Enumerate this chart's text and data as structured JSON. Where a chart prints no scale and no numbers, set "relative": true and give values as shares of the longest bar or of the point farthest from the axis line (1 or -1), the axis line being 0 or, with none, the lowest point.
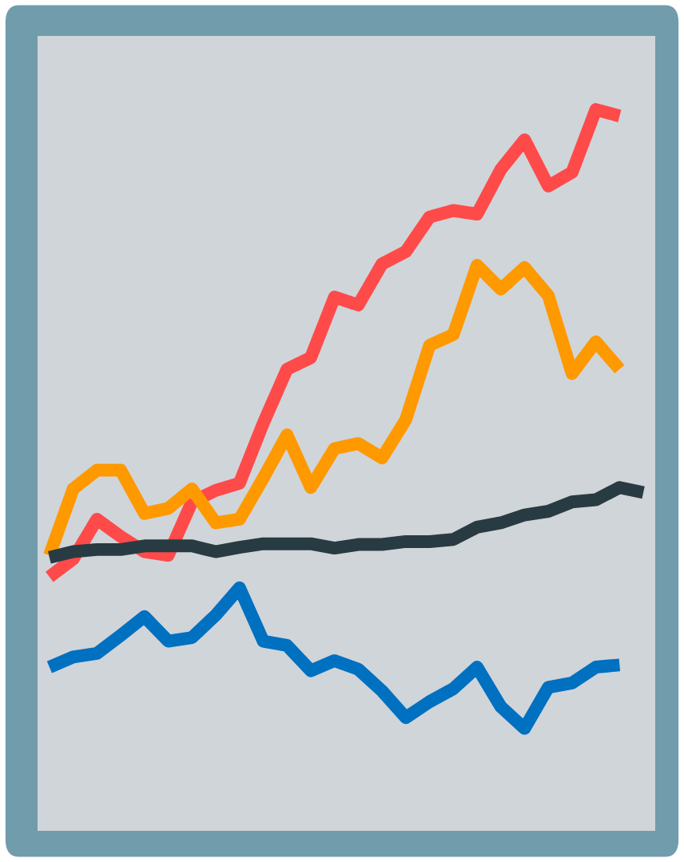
{
  "chart_data": {
    "type": "line",
    "relative": true,
    "grid": false,
    "legend": false,
    "marker": "none",
    "line_style": "solid",
    "categories": [
      null,
      null,
      null,
      null,
      null,
      null,
      null,
      null,
      null,
      null,
      null,
      null,
      null,
      null,
      null,
      null,
      null,
      null,
      null,
      null,
      null,
      null,
      null,
      null,
      null,
      null
    ],
    "series": [
      {
        "color": "#ff4a4a",
        "values": [
          0.352,
          0.377,
          0.432,
          0.408,
          0.387,
          0.382,
          0.456,
          0.472,
          0.482,
          0.565,
          0.64,
          0.656,
          0.74,
          0.729,
          0.786,
          0.803,
          0.851,
          0.86,
          0.855,
          0.917,
          0.958,
          0.894,
          0.913,
          1,
          0.991,
          null
        ]
      },
      {
        "color": "#ff9900",
        "values": [
          0.382,
          0.474,
          0.5,
          0.5,
          0.44,
          0.447,
          0.474,
          0.427,
          0.432,
          0.489,
          0.549,
          0.476,
          0.53,
          0.537,
          0.517,
          0.57,
          0.673,
          0.688,
          0.784,
          0.751,
          0.781,
          0.742,
          0.634,
          0.678,
          0.64,
          null
        ]
      },
      {
        "color": "#293b42",
        "values": [
          0.379,
          0.387,
          0.39,
          0.39,
          0.395,
          0.395,
          0.395,
          0.387,
          0.393,
          0.398,
          0.398,
          0.398,
          0.392,
          0.397,
          0.397,
          0.401,
          0.401,
          0.404,
          0.421,
          0.427,
          0.438,
          0.443,
          0.456,
          0.459,
          0.476,
          0.469
        ]
      },
      {
        "color": "#0070c0",
        "values": [
          0.227,
          0.241,
          0.246,
          0.271,
          0.297,
          0.263,
          0.268,
          0.299,
          0.337,
          0.263,
          0.257,
          0.222,
          0.236,
          0.224,
          0.194,
          0.157,
          0.179,
          0.197,
          0.227,
          0.172,
          0.142,
          0.199,
          0.205,
          0.227,
          0.23,
          null
        ]
      }
    ]
  }
}
